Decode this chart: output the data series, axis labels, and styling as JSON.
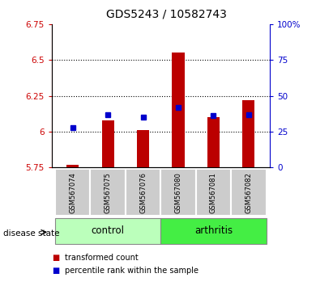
{
  "title": "GDS5243 / 10582743",
  "samples": [
    "GSM567074",
    "GSM567075",
    "GSM567076",
    "GSM567080",
    "GSM567081",
    "GSM567082"
  ],
  "bar_values": [
    5.77,
    6.08,
    6.01,
    6.55,
    6.1,
    6.22
  ],
  "dot_percentiles": [
    28,
    37,
    35,
    42,
    36,
    37
  ],
  "bar_bottom": 5.75,
  "ylim_left": [
    5.75,
    6.75
  ],
  "ylim_right": [
    0,
    100
  ],
  "yticks_left": [
    5.75,
    6.0,
    6.25,
    6.5,
    6.75
  ],
  "ytick_labels_left": [
    "5.75",
    "6",
    "6.25",
    "6.5",
    "6.75"
  ],
  "yticks_right": [
    0,
    25,
    50,
    75,
    100
  ],
  "ytick_labels_right": [
    "0",
    "25",
    "50",
    "75",
    "100%"
  ],
  "grid_lines": [
    6.0,
    6.25,
    6.5
  ],
  "bar_color": "#bb0000",
  "dot_color": "#0000cc",
  "control_color": "#bbffbb",
  "arthritis_color": "#44ee44",
  "sample_bg": "#cccccc",
  "group_label": "disease state",
  "legend_bar_label": "transformed count",
  "legend_dot_label": "percentile rank within the sample",
  "bar_width": 0.35
}
